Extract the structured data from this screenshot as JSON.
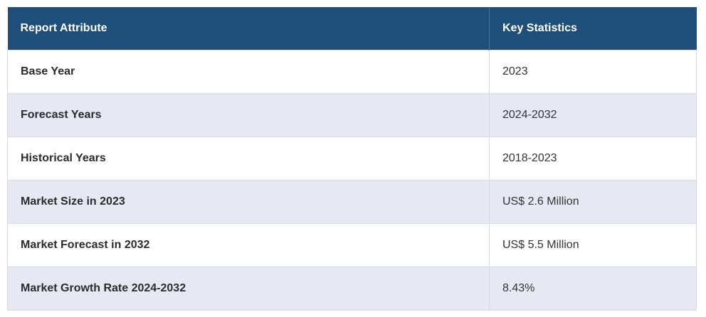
{
  "table": {
    "headers": [
      "Report Attribute",
      "Key Statistics"
    ],
    "rows": [
      {
        "attribute": "Base Year",
        "value": "2023"
      },
      {
        "attribute": "Forecast Years",
        "value": "2024-2032"
      },
      {
        "attribute": "Historical Years",
        "value": "2018-2023"
      },
      {
        "attribute": "Market Size in 2023",
        "value": "US$ 2.6 Million"
      },
      {
        "attribute": "Market Forecast in 2032",
        "value": "US$ 5.5 Million"
      },
      {
        "attribute": "Market Growth Rate 2024-2032",
        "value": "8.43%"
      }
    ]
  },
  "colors": {
    "header_bg": "#1f4e79",
    "header_text": "#ffffff",
    "stripe_bg": "#e6e9f4",
    "row_bg": "#ffffff"
  }
}
